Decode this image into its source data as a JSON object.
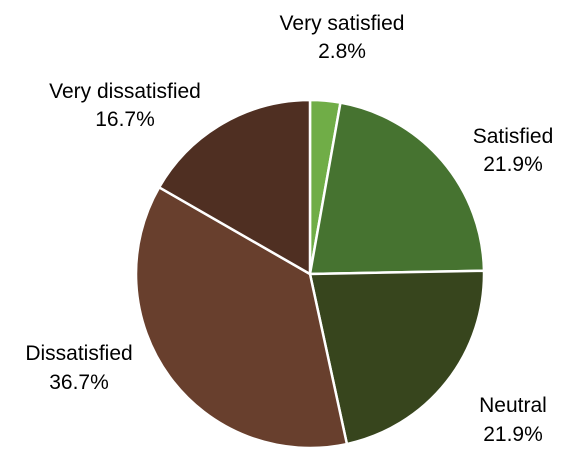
{
  "chart_data": {
    "type": "pie",
    "title": "",
    "start_angle_deg": 0,
    "direction": "clockwise",
    "legend": "none",
    "slices": [
      {
        "label": "Very satisfied",
        "value": 2.8,
        "value_label": "2.8%",
        "color": "#70ad47"
      },
      {
        "label": "Satisfied",
        "value": 21.9,
        "value_label": "21.9%",
        "color": "#467330"
      },
      {
        "label": "Neutral",
        "value": 21.9,
        "value_label": "21.9%",
        "color": "#37451d"
      },
      {
        "label": "Dissatisfied",
        "value": 36.7,
        "value_label": "36.7%",
        "color": "#683f2d"
      },
      {
        "label": "Very dissatisfied",
        "value": 16.7,
        "value_label": "16.7%",
        "color": "#4f2f22"
      }
    ]
  }
}
